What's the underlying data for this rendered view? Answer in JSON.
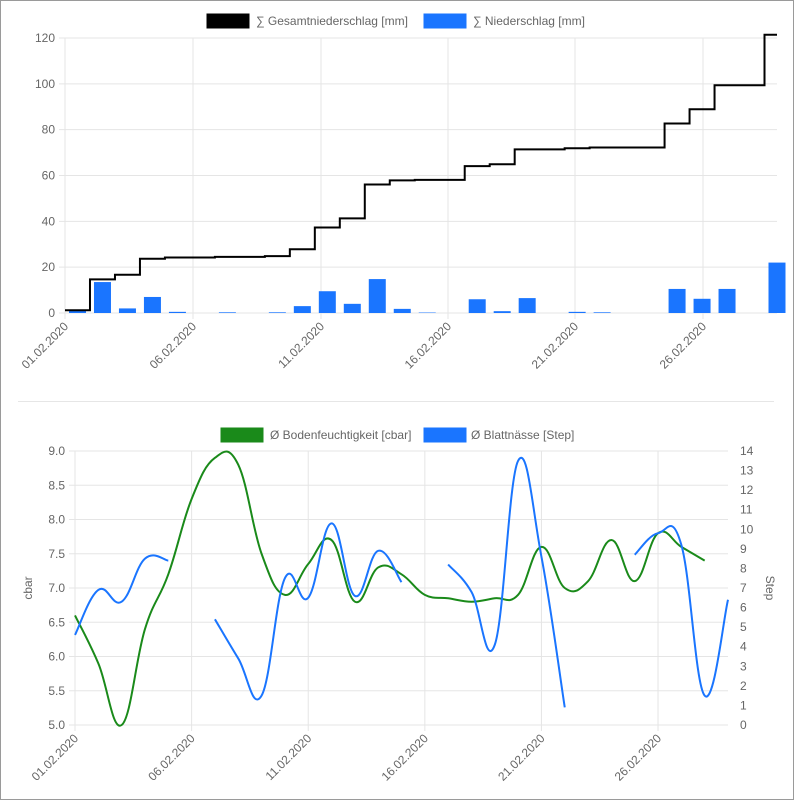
{
  "chart_data": [
    {
      "type": "bar",
      "legend": [
        {
          "label": "∑ Gesamtniederschlag [mm]",
          "color": "#000000"
        },
        {
          "label": "∑ Niederschlag [mm]",
          "color": "#1a75ff"
        }
      ],
      "x_tick_labels": [
        "01.02.2020",
        "06.02.2020",
        "11.02.2020",
        "16.02.2020",
        "21.02.2020",
        "26.02.2020"
      ],
      "ylim": [
        0,
        120
      ],
      "y_ticks": [
        "0",
        "20",
        "40",
        "60",
        "80",
        "100",
        "120"
      ],
      "days": 29,
      "series": [
        {
          "name": "∑ Niederschlag [mm]",
          "type": "bar",
          "values": [
            1.2,
            13.5,
            2.0,
            7.0,
            0.5,
            0,
            0.3,
            0,
            0.3,
            3.0,
            9.5,
            4.0,
            14.8,
            1.8,
            0.2,
            0,
            6.0,
            0.8,
            6.5,
            0,
            0.5,
            0.3,
            0,
            0,
            10.5,
            6.2,
            10.5,
            0,
            22.0
          ]
        },
        {
          "name": "∑ Gesamtniederschlag [mm]",
          "type": "step",
          "values": [
            1.2,
            14.7,
            16.7,
            23.7,
            24.2,
            24.2,
            24.5,
            24.5,
            24.8,
            27.8,
            37.3,
            41.3,
            56.1,
            57.9,
            58.1,
            58.1,
            64.1,
            64.9,
            71.4,
            71.4,
            71.9,
            72.2,
            72.2,
            72.2,
            82.7,
            88.9,
            99.4,
            99.4,
            121.4
          ]
        }
      ]
    },
    {
      "type": "line",
      "legend": [
        {
          "label": "Ø Bodenfeuchtigkeit [cbar]",
          "color": "#1a8a1a"
        },
        {
          "label": "Ø Blattnässe [Step]",
          "color": "#1a75ff"
        }
      ],
      "x_tick_labels": [
        "01.02.2020",
        "06.02.2020",
        "11.02.2020",
        "16.02.2020",
        "21.02.2020",
        "26.02.2020"
      ],
      "y_left": {
        "label": "cbar",
        "ylim": [
          5.0,
          9.0
        ],
        "ticks": [
          "5.0",
          "5.5",
          "6.0",
          "6.5",
          "7.0",
          "7.5",
          "8.0",
          "8.5",
          "9.0"
        ]
      },
      "y_right": {
        "label": "Step",
        "ylim": [
          0,
          14
        ],
        "ticks": [
          "0",
          "1",
          "2",
          "3",
          "4",
          "5",
          "6",
          "7",
          "8",
          "9",
          "10",
          "11",
          "12",
          "13",
          "14"
        ]
      },
      "series": [
        {
          "name": "Ø Bodenfeuchtigkeit [cbar]",
          "axis": "left",
          "points": [
            [
              0,
              6.6
            ],
            [
              1,
              5.9
            ],
            [
              2,
              5.0
            ],
            [
              3,
              6.4
            ],
            [
              4,
              7.2
            ],
            [
              5,
              8.3
            ],
            [
              6,
              8.9
            ],
            [
              7,
              8.8
            ],
            [
              8,
              7.5
            ],
            [
              9,
              6.9
            ],
            [
              10,
              7.35
            ],
            [
              11,
              7.7
            ],
            [
              12,
              6.8
            ],
            [
              13,
              7.3
            ],
            [
              14,
              7.2
            ],
            [
              15,
              6.9
            ],
            [
              16,
              6.85
            ],
            [
              17,
              6.8
            ],
            [
              18,
              6.85
            ],
            [
              19,
              6.9
            ],
            [
              20,
              7.6
            ],
            [
              21,
              7.0
            ],
            [
              22,
              7.1
            ],
            [
              23,
              7.7
            ],
            [
              24,
              7.1
            ],
            [
              25,
              7.8
            ],
            [
              26,
              7.6
            ],
            [
              27,
              7.4
            ]
          ]
        },
        {
          "name": "Ø Blattnässe [Step]",
          "axis": "right",
          "segments": [
            [
              [
                0,
                4.6
              ],
              [
                1,
                6.9
              ],
              [
                2,
                6.3
              ],
              [
                3,
                8.5
              ],
              [
                4,
                8.4
              ]
            ],
            [
              [
                6,
                5.4
              ],
              [
                7,
                3.4
              ],
              [
                8,
                1.5
              ],
              [
                9,
                7.5
              ],
              [
                10,
                6.5
              ],
              [
                11,
                10.3
              ],
              [
                12,
                6.6
              ],
              [
                13,
                8.9
              ],
              [
                14,
                7.3
              ]
            ],
            [
              [
                16,
                8.2
              ],
              [
                17,
                6.8
              ],
              [
                18,
                4.1
              ],
              [
                19,
                13.5
              ],
              [
                20,
                8.6
              ],
              [
                21,
                0.9
              ]
            ],
            [
              [
                24,
                8.7
              ],
              [
                25,
                9.8
              ],
              [
                26,
                9.2
              ],
              [
                27,
                1.5
              ],
              [
                28,
                6.4
              ]
            ]
          ]
        }
      ]
    }
  ]
}
